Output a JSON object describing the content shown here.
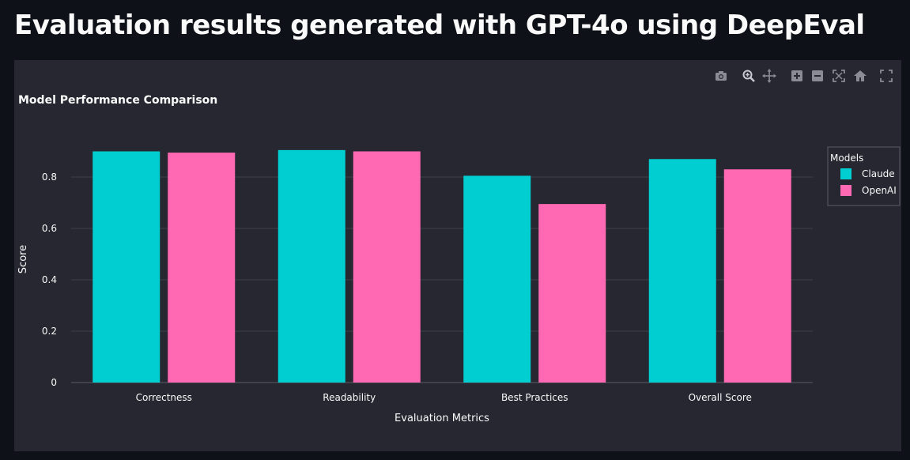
{
  "page": {
    "title": "Evaluation results generated with GPT-4o using DeepEval"
  },
  "modebar": [
    {
      "icon": "camera-icon",
      "label": "Download plot as a png"
    },
    {
      "icon": "zoom-icon",
      "label": "Zoom"
    },
    {
      "icon": "pan-icon",
      "label": "Pan"
    },
    {
      "icon": "zoom-in-icon",
      "label": "Zoom in"
    },
    {
      "icon": "zoom-out-icon",
      "label": "Zoom out"
    },
    {
      "icon": "autoscale-icon",
      "label": "Autoscale"
    },
    {
      "icon": "home-icon",
      "label": "Reset axes"
    },
    {
      "icon": "fullscreen-icon",
      "label": "Fullscreen"
    }
  ],
  "colors": {
    "Claude": "#00ced1",
    "OpenAI": "#ff69b4"
  },
  "chart_data": {
    "type": "bar",
    "title": "Model Performance Comparison",
    "xlabel": "Evaluation Metrics",
    "ylabel": "Score",
    "categories": [
      "Correctness",
      "Readability",
      "Best Practices",
      "Overall Score"
    ],
    "series": [
      {
        "name": "Claude",
        "values": [
          0.9,
          0.905,
          0.805,
          0.87
        ]
      },
      {
        "name": "OpenAI",
        "values": [
          0.895,
          0.9,
          0.695,
          0.83
        ]
      }
    ],
    "ylim": [
      0,
      0.96
    ],
    "yticks": [
      "0",
      "0.2",
      "0.4",
      "0.6",
      "0.8"
    ],
    "grid": true,
    "legend": {
      "title": "Models",
      "position": "right"
    }
  }
}
